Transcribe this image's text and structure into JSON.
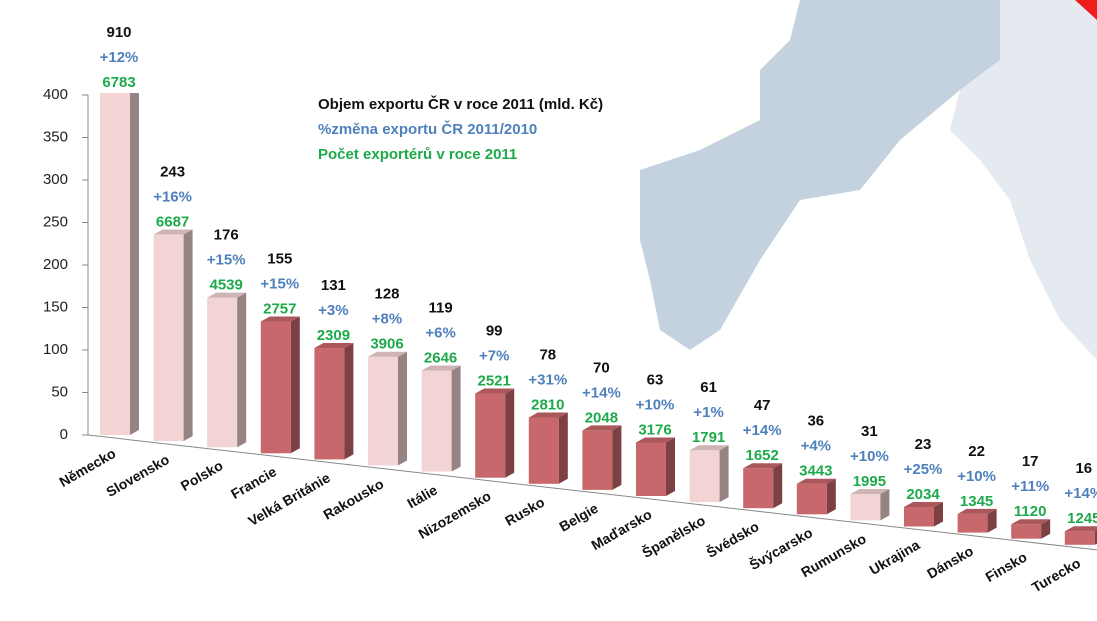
{
  "chart_data": {
    "type": "bar3d",
    "categories": [
      "Německo",
      "Slovensko",
      "Polsko",
      "Francie",
      "Velká Británie",
      "Rakousko",
      "Itálie",
      "Nizozemsko",
      "Rusko",
      "Belgie",
      "Maďarsko",
      "Španělsko",
      "Švédsko",
      "Švýcarsko",
      "Rumunsko",
      "Ukrajina",
      "Dánsko",
      "Finsko",
      "Turecko"
    ],
    "series": [
      {
        "name": "Objem exportu ČR v roce 2011 (mld. Kč)",
        "color": "#111111",
        "values": [
          910,
          243,
          176,
          155,
          131,
          128,
          119,
          99,
          78,
          70,
          63,
          61,
          47,
          36,
          31,
          23,
          22,
          17,
          16
        ]
      },
      {
        "name": "%změna exportu ČR 2011/2010",
        "color": "#4f81bd",
        "values": [
          12,
          16,
          15,
          15,
          3,
          8,
          6,
          7,
          31,
          14,
          10,
          1,
          14,
          4,
          10,
          25,
          10,
          11,
          14
        ],
        "value_labels": [
          "+12%",
          "+16%",
          "+15%",
          "+15%",
          "+3%",
          "+8%",
          "+6%",
          "+7%",
          "+31%",
          "+14%",
          "+10%",
          "+1%",
          "+14%",
          "+4%",
          "+10%",
          "+25%",
          "+10%",
          "+11%",
          "+14%"
        ]
      },
      {
        "name": "Počet exportérů v roce 2011",
        "color": "#1daa4b",
        "values": [
          6783,
          6687,
          4539,
          2757,
          2309,
          3906,
          2646,
          2521,
          2810,
          2048,
          3176,
          1791,
          1652,
          3443,
          1995,
          2034,
          1345,
          1120,
          1245
        ]
      }
    ],
    "bar_colors": [
      "#f2d4d4",
      "#f2d4d4",
      "#f2d4d4",
      "#c9686c",
      "#c9686c",
      "#f2d4d4",
      "#f2d4d4",
      "#c9686c",
      "#c9686c",
      "#c9686c",
      "#c9686c",
      "#f2d4d4",
      "#c9686c",
      "#c9686c",
      "#f2d4d4",
      "#c9686c",
      "#c9686c",
      "#c9686c",
      "#c9686c"
    ],
    "ylim": [
      0,
      400
    ],
    "yticks": [
      0,
      50,
      100,
      150,
      200,
      250,
      300,
      350,
      400
    ]
  }
}
